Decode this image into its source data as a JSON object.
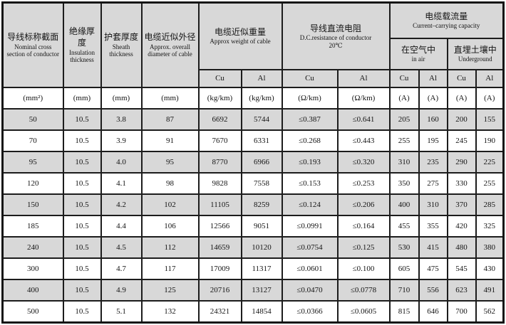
{
  "table": {
    "header": {
      "nominal_cross_section": {
        "zh": "导线标称截面",
        "en": "Nominal cross section of conductor"
      },
      "insulation_thickness": {
        "zh": "绝缘厚度",
        "en": "Insulation thickness"
      },
      "sheath_thickness": {
        "zh": "护套厚度",
        "en": "Sheath thickness"
      },
      "approx_diameter": {
        "zh": "电缆近似外径",
        "en": "Approx. overall diameter of cable"
      },
      "approx_weight": {
        "zh": "电缆近似重量",
        "en": "Approx weight of cable",
        "sub": [
          "Cu",
          "Al"
        ]
      },
      "dc_resistance": {
        "zh": "导线直流电阻",
        "en": "D.C.resistance of conductor",
        "temp": "20℃",
        "sub": [
          "Cu",
          "Al"
        ]
      },
      "current_capacity": {
        "zh": "电缆载流量",
        "en": "Current–carrying capacity",
        "in_air": {
          "zh": "在空气中",
          "en": "in air",
          "sub": [
            "Cu",
            "Al"
          ]
        },
        "underground": {
          "zh": "直埋土壤中",
          "en": "Underground",
          "sub": [
            "Cu",
            "Al"
          ]
        }
      }
    },
    "units_row": [
      "(mm²)",
      "(mm)",
      "(mm)",
      "(mm)",
      "(kg/km)",
      "(kg/km)",
      "(Ω/km)",
      "(Ω/km)",
      "(A)",
      "(A)",
      "(A)",
      "(A)"
    ],
    "column_keys": [
      "nominal-cross-section",
      "insulation-thickness",
      "sheath-thickness",
      "approx-diameter",
      "weight-cu",
      "weight-al",
      "resistance-cu",
      "resistance-al",
      "in-air-cu",
      "in-air-al",
      "underground-cu",
      "underground-al"
    ],
    "rows": [
      [
        "50",
        "10.5",
        "3.8",
        "87",
        "6692",
        "5744",
        "≤0.387",
        "≤0.641",
        "205",
        "160",
        "200",
        "155"
      ],
      [
        "70",
        "10.5",
        "3.9",
        "91",
        "7670",
        "6331",
        "≤0.268",
        "≤0.443",
        "255",
        "195",
        "245",
        "190"
      ],
      [
        "95",
        "10.5",
        "4.0",
        "95",
        "8770",
        "6966",
        "≤0.193",
        "≤0.320",
        "310",
        "235",
        "290",
        "225"
      ],
      [
        "120",
        "10.5",
        "4.1",
        "98",
        "9828",
        "7558",
        "≤0.153",
        "≤0.253",
        "350",
        "275",
        "330",
        "255"
      ],
      [
        "150",
        "10.5",
        "4.2",
        "102",
        "11105",
        "8259",
        "≤0.124",
        "≤0.206",
        "400",
        "310",
        "370",
        "285"
      ],
      [
        "185",
        "10.5",
        "4.4",
        "106",
        "12566",
        "9051",
        "≤0.0991",
        "≤0.164",
        "455",
        "355",
        "420",
        "325"
      ],
      [
        "240",
        "10.5",
        "4.5",
        "112",
        "14659",
        "10120",
        "≤0.0754",
        "≤0.125",
        "530",
        "415",
        "480",
        "380"
      ],
      [
        "300",
        "10.5",
        "4.7",
        "117",
        "17009",
        "11317",
        "≤0.0601",
        "≤0.100",
        "605",
        "475",
        "545",
        "430"
      ],
      [
        "400",
        "10.5",
        "4.9",
        "125",
        "20716",
        "13127",
        "≤0.0470",
        "≤0.0778",
        "710",
        "556",
        "623",
        "491"
      ],
      [
        "500",
        "10.5",
        "5.1",
        "132",
        "24321",
        "14854",
        "≤0.0366",
        "≤0.0605",
        "815",
        "646",
        "700",
        "562"
      ]
    ],
    "colors": {
      "header_fill": "#d8d8d8",
      "shaded_row_fill": "#d8d8d8",
      "border": "#1c1c1c",
      "text": "#141414"
    }
  },
  "chart_data": {
    "type": "table",
    "title": "",
    "columns": [
      "导线标称截面 Nominal cross section of conductor (mm²)",
      "绝缘厚度 Insulation thickness (mm)",
      "护套厚度 Sheath thickness (mm)",
      "电缆近似外径 Approx. overall diameter of cable (mm)",
      "电缆近似重量 Approx weight of cable Cu (kg/km)",
      "电缆近似重量 Approx weight of cable Al (kg/km)",
      "导线直流电阻 D.C.resistance of conductor 20℃ Cu (Ω/km)",
      "导线直流电阻 D.C.resistance of conductor 20℃ Al (Ω/km)",
      "电缆载流量 在空气中 in air Cu (A)",
      "电缆载流量 在空气中 in air Al (A)",
      "电缆载流量 直埋土壤中 Underground Cu (A)",
      "电缆载流量 直埋土壤中 Underground Al (A)"
    ],
    "rows": [
      [
        "50",
        "10.5",
        "3.8",
        "87",
        "6692",
        "5744",
        "≤0.387",
        "≤0.641",
        "205",
        "160",
        "200",
        "155"
      ],
      [
        "70",
        "10.5",
        "3.9",
        "91",
        "7670",
        "6331",
        "≤0.268",
        "≤0.443",
        "255",
        "195",
        "245",
        "190"
      ],
      [
        "95",
        "10.5",
        "4.0",
        "95",
        "8770",
        "6966",
        "≤0.193",
        "≤0.320",
        "310",
        "235",
        "290",
        "225"
      ],
      [
        "120",
        "10.5",
        "4.1",
        "98",
        "9828",
        "7558",
        "≤0.153",
        "≤0.253",
        "350",
        "275",
        "330",
        "255"
      ],
      [
        "150",
        "10.5",
        "4.2",
        "102",
        "11105",
        "8259",
        "≤0.124",
        "≤0.206",
        "400",
        "310",
        "370",
        "285"
      ],
      [
        "185",
        "10.5",
        "4.4",
        "106",
        "12566",
        "9051",
        "≤0.0991",
        "≤0.164",
        "455",
        "355",
        "420",
        "325"
      ],
      [
        "240",
        "10.5",
        "4.5",
        "112",
        "14659",
        "10120",
        "≤0.0754",
        "≤0.125",
        "530",
        "415",
        "480",
        "380"
      ],
      [
        "300",
        "10.5",
        "4.7",
        "117",
        "17009",
        "11317",
        "≤0.0601",
        "≤0.100",
        "605",
        "475",
        "545",
        "430"
      ],
      [
        "400",
        "10.5",
        "4.9",
        "125",
        "20716",
        "13127",
        "≤0.0470",
        "≤0.0778",
        "710",
        "556",
        "623",
        "491"
      ],
      [
        "500",
        "10.5",
        "5.1",
        "132",
        "24321",
        "14854",
        "≤0.0366",
        "≤0.0605",
        "815",
        "646",
        "700",
        "562"
      ]
    ]
  }
}
